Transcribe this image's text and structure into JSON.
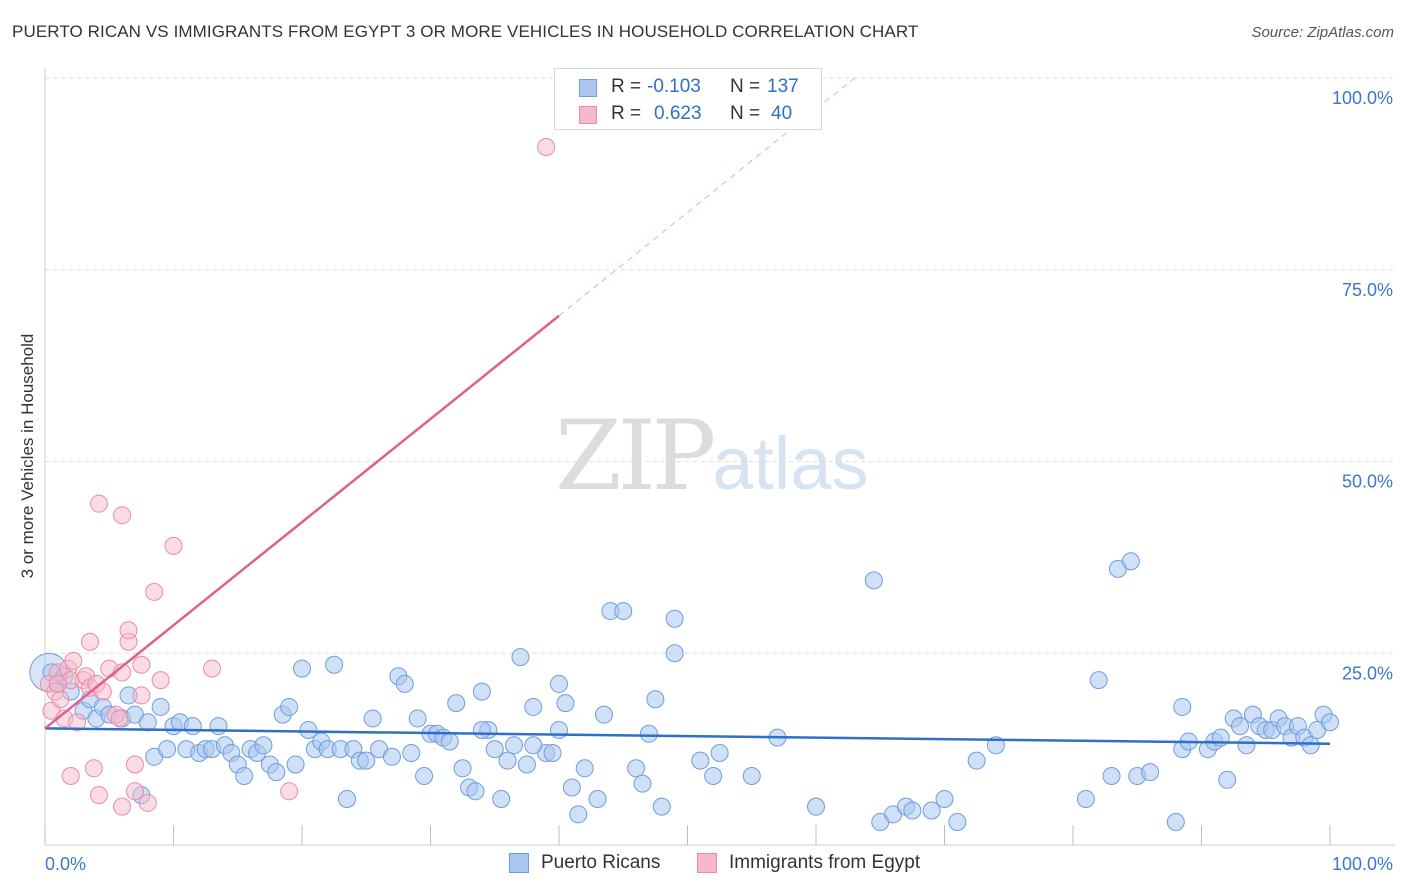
{
  "header": {
    "title": "PUERTO RICAN VS IMMIGRANTS FROM EGYPT 3 OR MORE VEHICLES IN HOUSEHOLD CORRELATION CHART",
    "source": "Source: ZipAtlas.com"
  },
  "watermark": {
    "zip": "ZIP",
    "atlas": "atlas"
  },
  "legend": {
    "rows": [
      {
        "r_label": "R =",
        "r_value": "-0.103",
        "n_label": "N =",
        "n_value": "137"
      },
      {
        "r_label": "R =",
        "r_value": "0.623",
        "n_label": "N =",
        "n_value": "40"
      }
    ]
  },
  "bottom_legend": {
    "series1": "Puerto Ricans",
    "series2": "Immigrants from Egypt"
  },
  "colors": {
    "blue_fill": "#a9c6ee",
    "blue_stroke": "#6d9ede",
    "blue_line": "#2e6fc8",
    "pink_fill": "#f6b9cc",
    "pink_stroke": "#eb8aa8",
    "pink_line": "#e0608a",
    "grid": "#dcdcdc",
    "axis_label": "#3a78c9"
  },
  "chart_data": {
    "type": "scatter",
    "title": "PUERTO RICAN VS IMMIGRANTS FROM EGYPT 3 OR MORE VEHICLES IN HOUSEHOLD CORRELATION CHART",
    "xlabel": "",
    "ylabel": "3 or more Vehicles in Household",
    "xlim": [
      0,
      100
    ],
    "ylim": [
      0,
      100
    ],
    "x_tick_labels": [
      "0.0%",
      "100.0%"
    ],
    "y_ticks": [
      25,
      50,
      75,
      100
    ],
    "y_tick_labels": [
      "25.0%",
      "50.0%",
      "75.0%",
      "100.0%"
    ],
    "grid": true,
    "series": [
      {
        "name": "Puerto Ricans",
        "R": -0.103,
        "N": 137,
        "trend": {
          "x": [
            0,
            100
          ],
          "y": [
            15.2,
            13.2
          ]
        },
        "points": [
          [
            0.5,
            22.5
          ],
          [
            1,
            21
          ],
          [
            1.5,
            22
          ],
          [
            2,
            20
          ],
          [
            3,
            17.5
          ],
          [
            3.5,
            19
          ],
          [
            4,
            16.5
          ],
          [
            4.5,
            18
          ],
          [
            5,
            17
          ],
          [
            6,
            16.5
          ],
          [
            6.5,
            19.5
          ],
          [
            7,
            17
          ],
          [
            7.5,
            6.5
          ],
          [
            8,
            16
          ],
          [
            8.5,
            11.5
          ],
          [
            9,
            18
          ],
          [
            9.5,
            12.5
          ],
          [
            10,
            15.5
          ],
          [
            10.5,
            16
          ],
          [
            11,
            12.5
          ],
          [
            11.5,
            15.5
          ],
          [
            12,
            12
          ],
          [
            12.5,
            12.5
          ],
          [
            13,
            12.5
          ],
          [
            13.5,
            15.5
          ],
          [
            14,
            13
          ],
          [
            14.5,
            12
          ],
          [
            15,
            10.5
          ],
          [
            15.5,
            9
          ],
          [
            16,
            12.5
          ],
          [
            16.5,
            12
          ],
          [
            17,
            13
          ],
          [
            17.5,
            10.5
          ],
          [
            18,
            9.5
          ],
          [
            18.5,
            17
          ],
          [
            19,
            18
          ],
          [
            19.5,
            10.5
          ],
          [
            20,
            23
          ],
          [
            20.5,
            15
          ],
          [
            21,
            12.5
          ],
          [
            21.5,
            13.5
          ],
          [
            22,
            12.5
          ],
          [
            22.5,
            23.5
          ],
          [
            23,
            12.5
          ],
          [
            23.5,
            6
          ],
          [
            24,
            12.5
          ],
          [
            24.5,
            11
          ],
          [
            25,
            11
          ],
          [
            25.5,
            16.5
          ],
          [
            26,
            12.5
          ],
          [
            27,
            11.5
          ],
          [
            27.5,
            22
          ],
          [
            28,
            21
          ],
          [
            28.5,
            12
          ],
          [
            29,
            16.5
          ],
          [
            29.5,
            9
          ],
          [
            30,
            14.5
          ],
          [
            30.5,
            14.5
          ],
          [
            31,
            14
          ],
          [
            31.5,
            13.5
          ],
          [
            32,
            18.5
          ],
          [
            32.5,
            10
          ],
          [
            33,
            7.5
          ],
          [
            33.5,
            7
          ],
          [
            34,
            20
          ],
          [
            34.5,
            15
          ],
          [
            35,
            12.5
          ],
          [
            35.5,
            6
          ],
          [
            36,
            11
          ],
          [
            37,
            24.5
          ],
          [
            37.5,
            10.5
          ],
          [
            38,
            18
          ],
          [
            39,
            12
          ],
          [
            39.5,
            12
          ],
          [
            40,
            21
          ],
          [
            40.5,
            18.5
          ],
          [
            41,
            7.5
          ],
          [
            41.5,
            4
          ],
          [
            42,
            10
          ],
          [
            43,
            6
          ],
          [
            44,
            30.5
          ],
          [
            45,
            30.5
          ],
          [
            46,
            10
          ],
          [
            47,
            14.5
          ],
          [
            47.5,
            19
          ],
          [
            49,
            29.5
          ],
          [
            49,
            25
          ],
          [
            51,
            11
          ],
          [
            52,
            9
          ],
          [
            55,
            9
          ],
          [
            64.5,
            34.5
          ],
          [
            65,
            3
          ],
          [
            66,
            4
          ],
          [
            67,
            5
          ],
          [
            67.5,
            4.5
          ],
          [
            69,
            4.5
          ],
          [
            70,
            6
          ],
          [
            71,
            3
          ],
          [
            72.5,
            11
          ],
          [
            74,
            13
          ],
          [
            81,
            6
          ],
          [
            82,
            21.5
          ],
          [
            83,
            9
          ],
          [
            83.5,
            36
          ],
          [
            84.5,
            37
          ],
          [
            85,
            9
          ],
          [
            86,
            9.5
          ],
          [
            88,
            3
          ],
          [
            88.5,
            18
          ],
          [
            88.5,
            12.5
          ],
          [
            89,
            13.5
          ],
          [
            90.5,
            12.5
          ],
          [
            91,
            13.5
          ],
          [
            91.5,
            14
          ],
          [
            92,
            8.5
          ],
          [
            92.5,
            16.5
          ],
          [
            93,
            15.5
          ],
          [
            94,
            17
          ],
          [
            94.5,
            15.5
          ],
          [
            95,
            15
          ],
          [
            95.5,
            15
          ],
          [
            96,
            16.5
          ],
          [
            96.5,
            15.5
          ],
          [
            97,
            14
          ],
          [
            97.5,
            15.5
          ],
          [
            98,
            14
          ],
          [
            98.5,
            13
          ],
          [
            99,
            15
          ],
          [
            99.5,
            17
          ],
          [
            100,
            16
          ],
          [
            34,
            15
          ],
          [
            36.5,
            13
          ],
          [
            38,
            13
          ],
          [
            40,
            15
          ],
          [
            43.5,
            17
          ],
          [
            46.5,
            8
          ],
          [
            48,
            5
          ],
          [
            52.5,
            12
          ],
          [
            57,
            14
          ],
          [
            60,
            5
          ],
          [
            93.5,
            13
          ]
        ]
      },
      {
        "name": "Immigrants from Egypt",
        "R": 0.623,
        "N": 40,
        "trend": {
          "x": [
            0,
            40
          ],
          "y": [
            15.2,
            69
          ]
        },
        "trend_dashed": {
          "x": [
            40,
            63
          ],
          "y": [
            69,
            100
          ]
        },
        "points": [
          [
            0.3,
            21
          ],
          [
            0.5,
            17.5
          ],
          [
            0.8,
            20
          ],
          [
            1,
            22.5
          ],
          [
            1.2,
            19
          ],
          [
            1.5,
            16.5
          ],
          [
            1.8,
            23
          ],
          [
            2,
            21.5
          ],
          [
            2.2,
            24
          ],
          [
            2.5,
            16
          ],
          [
            2,
            9
          ],
          [
            3,
            21.5
          ],
          [
            3.2,
            22
          ],
          [
            3.5,
            20.5
          ],
          [
            3.5,
            26.5
          ],
          [
            3.8,
            10
          ],
          [
            4,
            21
          ],
          [
            4.2,
            6.5
          ],
          [
            4.2,
            44.5
          ],
          [
            4.5,
            20
          ],
          [
            5,
            23
          ],
          [
            5.5,
            17
          ],
          [
            5.8,
            16.5
          ],
          [
            6,
            43
          ],
          [
            6,
            22.5
          ],
          [
            6,
            5
          ],
          [
            6.5,
            26.5
          ],
          [
            6.5,
            28
          ],
          [
            7,
            10.5
          ],
          [
            7.5,
            23.5
          ],
          [
            7,
            7
          ],
          [
            7.5,
            19.5
          ],
          [
            8,
            5.5
          ],
          [
            8.5,
            33
          ],
          [
            9,
            21.5
          ],
          [
            10,
            39
          ],
          [
            13,
            23
          ],
          [
            19,
            7
          ],
          [
            39,
            91
          ],
          [
            1,
            21
          ]
        ]
      }
    ]
  }
}
